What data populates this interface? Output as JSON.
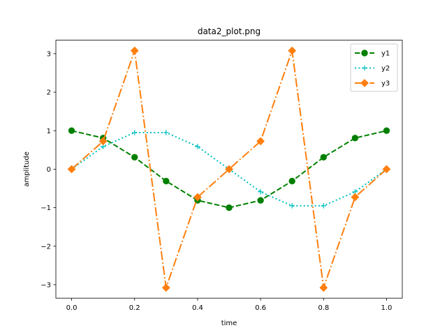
{
  "chart_data": {
    "type": "line",
    "title": "data2_plot.png",
    "xlabel": "time",
    "ylabel": "amplitude",
    "xlim": [
      -0.05,
      1.05
    ],
    "ylim": [
      -3.35,
      3.35
    ],
    "xticks": [
      0.0,
      0.2,
      0.4,
      0.6,
      0.8,
      1.0
    ],
    "xtick_labels": [
      "0.0",
      "0.2",
      "0.4",
      "0.6",
      "0.8",
      "1.0"
    ],
    "yticks": [
      -3,
      -2,
      -1,
      0,
      1,
      2,
      3
    ],
    "ytick_labels": [
      "−3",
      "−2",
      "−1",
      "0",
      "1",
      "2",
      "3"
    ],
    "grid": false,
    "legend_position": "top-right",
    "x": [
      0.0,
      0.1,
      0.2,
      0.3,
      0.4,
      0.5,
      0.6,
      0.7,
      0.8,
      0.9,
      1.0
    ],
    "series": [
      {
        "name": "y1",
        "color": "#008000",
        "line_style": "dashed",
        "marker": "circle",
        "values": [
          1.0,
          0.809,
          0.309,
          -0.309,
          -0.809,
          -1.0,
          -0.809,
          -0.309,
          0.309,
          0.809,
          1.0
        ]
      },
      {
        "name": "y2",
        "color": "#00bfbf",
        "line_style": "dotted",
        "marker": "plus",
        "values": [
          0.0,
          0.588,
          0.951,
          0.951,
          0.588,
          0.0,
          -0.588,
          -0.951,
          -0.951,
          -0.588,
          0.0
        ]
      },
      {
        "name": "y3",
        "color": "#ff7f0e",
        "line_style": "dashdot",
        "marker": "diamond",
        "values": [
          0.0,
          0.727,
          3.078,
          -3.078,
          -0.727,
          0.0,
          0.727,
          3.078,
          -3.078,
          -0.727,
          0.0
        ]
      }
    ]
  }
}
